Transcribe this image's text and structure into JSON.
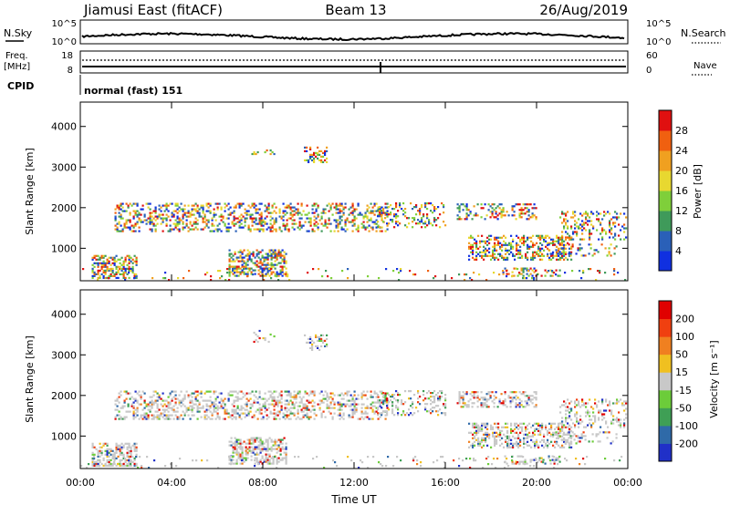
{
  "header": {
    "station": "Jiamusi East (fitACF)",
    "beam": "Beam 13",
    "date": "26/Aug/2019"
  },
  "top_panels": {
    "nsky_label": "N.Sky",
    "nsky_ticks": [
      "10^5",
      "10^0"
    ],
    "nsearch_label": "N.Search",
    "nsearch_ticks": [
      "10^5",
      "10^0"
    ],
    "freq_label": "Freq.",
    "freq_unit": "[MHz]",
    "freq_ticks": [
      "18",
      "8"
    ],
    "nave_label": "Nave",
    "nave_ticks": [
      "60",
      "0"
    ],
    "cpid_label": "CPID",
    "cpid_value": "normal (fast) 151"
  },
  "chart_data": [
    {
      "type": "heatmap",
      "name": "power",
      "ylabel": "Slant Range [km]",
      "ylim": [
        200,
        4600
      ],
      "yticks": [
        "1000",
        "2000",
        "3000",
        "4000"
      ],
      "colorbar_label": "Power [dB]",
      "colorbar_ticks": [
        "4",
        "8",
        "12",
        "16",
        "20",
        "24",
        "28"
      ],
      "colors": [
        "#1030e0",
        "#2a60b8",
        "#3f9a5a",
        "#7fcf3a",
        "#e8d830",
        "#f0a020",
        "#f06010",
        "#e01010"
      ]
    },
    {
      "type": "heatmap",
      "name": "velocity",
      "ylabel": "Slant Range [km]",
      "ylim": [
        200,
        4600
      ],
      "yticks": [
        "1000",
        "2000",
        "3000",
        "4000"
      ],
      "colorbar_label": "Velocity [m s⁻¹]",
      "colorbar_ticks": [
        "200",
        "100",
        "50",
        "15",
        "-15",
        "-50",
        "-100",
        "-200"
      ],
      "colors": [
        "#2030c8",
        "#2f6aa8",
        "#3f9f55",
        "#6ccc3a",
        "#c8c8c8",
        "#f0c020",
        "#f08020",
        "#f04010",
        "#e00000"
      ]
    }
  ],
  "xaxis": {
    "label": "Time UT",
    "ticks": [
      "00:00",
      "04:00",
      "08:00",
      "12:00",
      "16:00",
      "20:00",
      "00:00"
    ]
  }
}
